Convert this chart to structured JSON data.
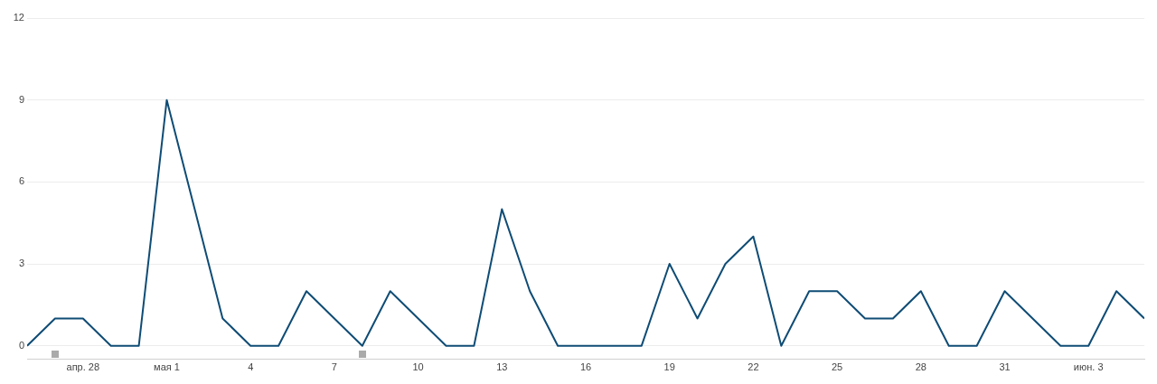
{
  "chart_data": {
    "type": "line",
    "x": [
      "--04-26",
      "--04-27",
      "--04-28",
      "--04-29",
      "--04-30",
      "--05-01",
      "--05-02",
      "--05-03",
      "--05-04",
      "--05-05",
      "--05-06",
      "--05-07",
      "--05-08",
      "--05-09",
      "--05-10",
      "--05-11",
      "--05-12",
      "--05-13",
      "--05-14",
      "--05-15",
      "--05-16",
      "--05-17",
      "--05-18",
      "--05-19",
      "--05-20",
      "--05-21",
      "--05-22",
      "--05-23",
      "--05-24",
      "--05-25",
      "--05-26",
      "--05-27",
      "--05-28",
      "--05-29",
      "--05-30",
      "--05-31",
      "--06-01",
      "--06-02",
      "--06-03",
      "--06-04",
      "--06-05"
    ],
    "series": [
      {
        "color": "#0f4c75",
        "values": [
          0,
          1,
          1,
          0,
          0,
          9,
          5,
          1,
          0,
          0,
          2,
          1,
          0,
          2,
          1,
          0,
          0,
          5,
          2,
          0,
          0,
          0,
          0,
          3,
          1,
          3,
          4,
          0,
          2,
          2,
          1,
          1,
          2,
          0,
          0,
          2,
          1,
          0,
          0,
          2,
          1
        ]
      }
    ],
    "xlim": [
      "--04-26",
      "--06-05"
    ],
    "xticks": [
      {
        "value": "--04-28",
        "label": "апр. 28"
      },
      {
        "value": "--05-01",
        "label": "мая 1"
      },
      {
        "value": "--05-04",
        "label": "4"
      },
      {
        "value": "--05-07",
        "label": "7"
      },
      {
        "value": "--05-10",
        "label": "10"
      },
      {
        "value": "--05-13",
        "label": "13"
      },
      {
        "value": "--05-16",
        "label": "16"
      },
      {
        "value": "--05-19",
        "label": "19"
      },
      {
        "value": "--05-22",
        "label": "22"
      },
      {
        "value": "--05-25",
        "label": "25"
      },
      {
        "value": "--05-28",
        "label": "28"
      },
      {
        "value": "--05-31",
        "label": "31"
      },
      {
        "value": "--06-03",
        "label": "июн. 3"
      }
    ],
    "ylim": [
      -0.5,
      12
    ],
    "yticks": [
      0,
      3,
      6,
      9,
      12
    ],
    "grid": "y",
    "legend": false,
    "marker": "none",
    "line_style": "solid"
  }
}
